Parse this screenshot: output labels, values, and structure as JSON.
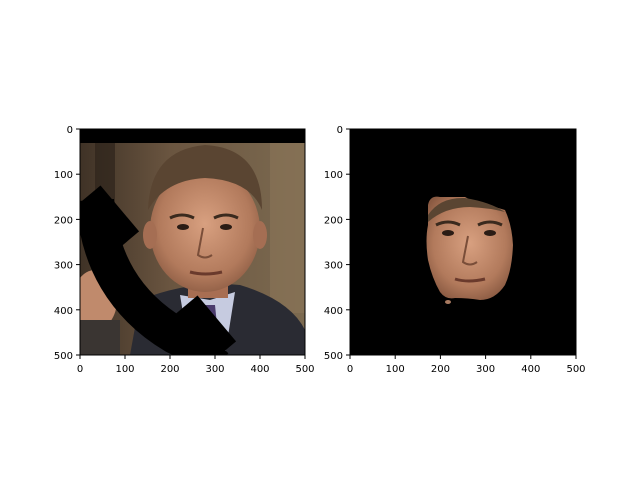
{
  "chart_data": [
    {
      "type": "image",
      "panel": "original-with-occlusion",
      "xlim": [
        0,
        500
      ],
      "ylim": [
        500,
        0
      ],
      "x_ticks": [
        0,
        100,
        200,
        300,
        400,
        500
      ],
      "y_ticks": [
        0,
        100,
        200,
        300,
        400,
        500
      ],
      "grid": false,
      "content": "photo of a man in a suit with a black telephone-handset occluder drawn over the left side"
    },
    {
      "type": "image",
      "panel": "segmented-face",
      "xlim": [
        0,
        500
      ],
      "ylim": [
        500,
        0
      ],
      "x_ticks": [
        0,
        100,
        200,
        300,
        400,
        500
      ],
      "y_ticks": [
        0,
        100,
        200,
        300,
        400,
        500
      ],
      "grid": false,
      "content": "face region only on black background"
    }
  ],
  "colors": {
    "axes_edge": "#000000",
    "mask_bg": "#000000",
    "skin": "#b98567",
    "hair": "#5a4532",
    "suit": "#2a2b33"
  }
}
